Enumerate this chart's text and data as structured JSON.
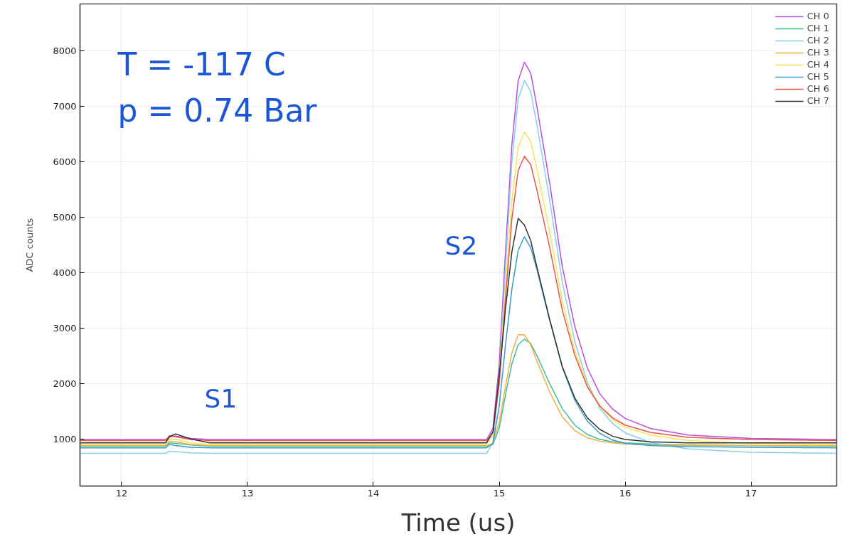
{
  "chart_data": {
    "type": "line",
    "xlabel": "Time (us)",
    "ylabel": "ADC counts",
    "x": [
      11.67,
      12.35,
      12.38,
      12.43,
      12.55,
      12.7,
      14.9,
      14.95,
      15.0,
      15.05,
      15.1,
      15.15,
      15.2,
      15.25,
      15.3,
      15.4,
      15.5,
      15.6,
      15.7,
      15.8,
      15.9,
      16.0,
      16.2,
      16.5,
      17.0,
      17.68
    ],
    "series": [
      {
        "name": "CH 0",
        "color": "#b84fe0",
        "values": [
          990,
          990,
          1040,
          1050,
          1010,
          990,
          990,
          1190,
          2350,
          4400,
          6300,
          7460,
          7800,
          7600,
          6980,
          5620,
          4120,
          3030,
          2280,
          1810,
          1540,
          1370,
          1190,
          1070,
          1010,
          990
        ]
      },
      {
        "name": "CH 1",
        "color": "#3fbf9f",
        "values": [
          870,
          870,
          930,
          920,
          890,
          870,
          870,
          900,
          1200,
          1800,
          2350,
          2700,
          2800,
          2720,
          2500,
          2000,
          1550,
          1250,
          1080,
          990,
          950,
          930,
          910,
          890,
          880,
          870
        ]
      },
      {
        "name": "CH 2",
        "color": "#87cef0",
        "values": [
          740,
          740,
          780,
          770,
          750,
          740,
          740,
          940,
          2090,
          4110,
          5990,
          7130,
          7470,
          7270,
          6660,
          5320,
          3840,
          2760,
          2020,
          1550,
          1280,
          1110,
          940,
          820,
          760,
          740
        ]
      },
      {
        "name": "CH 3",
        "color": "#f0b040",
        "values": [
          880,
          880,
          960,
          950,
          900,
          880,
          880,
          920,
          1300,
          1950,
          2550,
          2880,
          2880,
          2700,
          2400,
          1850,
          1400,
          1150,
          1020,
          960,
          930,
          910,
          890,
          880,
          880,
          880
        ]
      },
      {
        "name": "CH 4",
        "color": "#f5e55a",
        "values": [
          900,
          900,
          1000,
          990,
          930,
          900,
          900,
          1070,
          2100,
          3720,
          5300,
          6260,
          6540,
          6370,
          5860,
          4740,
          3490,
          2590,
          1970,
          1580,
          1350,
          1210,
          1070,
          970,
          920,
          900
        ]
      },
      {
        "name": "CH 5",
        "color": "#3a9ac8",
        "values": [
          840,
          840,
          900,
          880,
          850,
          840,
          840,
          920,
          1600,
          2700,
          3700,
          4400,
          4650,
          4450,
          4050,
          3150,
          2300,
          1700,
          1320,
          1100,
          980,
          920,
          880,
          860,
          850,
          840
        ]
      },
      {
        "name": "CH 6",
        "color": "#e8554a",
        "values": [
          970,
          970,
          1060,
          1040,
          990,
          970,
          970,
          1120,
          2000,
          3540,
          4970,
          5840,
          6100,
          5950,
          5480,
          4460,
          3330,
          2510,
          1940,
          1590,
          1380,
          1250,
          1120,
          1030,
          990,
          970
        ]
      },
      {
        "name": "CH 7",
        "color": "#333333",
        "values": [
          930,
          930,
          1040,
          1090,
          1000,
          930,
          930,
          1130,
          2150,
          3360,
          4370,
          4980,
          4860,
          4580,
          4090,
          3160,
          2310,
          1740,
          1380,
          1170,
          1050,
          990,
          950,
          930,
          930,
          930
        ]
      }
    ],
    "xlim": [
      11.67,
      17.68
    ],
    "ylim": [
      150,
      8850
    ],
    "xticks": [
      12,
      13,
      14,
      15,
      16,
      17
    ],
    "yticks": [
      1000,
      2000,
      3000,
      4000,
      5000,
      6000,
      7000,
      8000
    ],
    "annotations": [
      "T = -117 C",
      "p = 0.74 Bar",
      "S1",
      "S2"
    ],
    "grid": true,
    "legend": "top right",
    "line_style": "solid",
    "marker": "none"
  }
}
